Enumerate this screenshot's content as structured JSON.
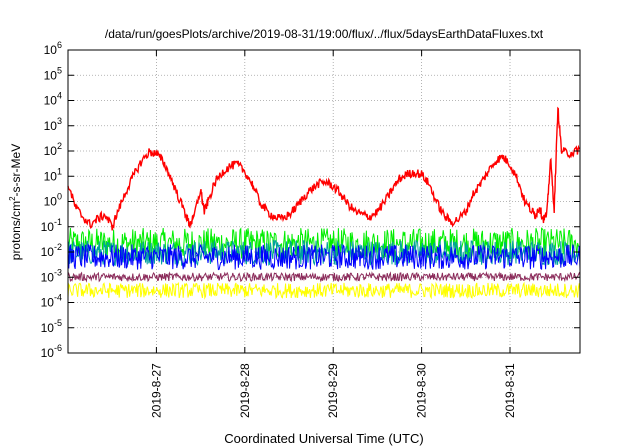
{
  "chart_data": {
    "type": "line",
    "title": "/data/run/goesPlots/archive/2019-08-31/19:00/flux/../flux/5daysEarthDataFluxes.txt",
    "xlabel": "Coordinated Universal Time (UTC)",
    "ylabel_parts": {
      "base": "protons/cm",
      "sup": "2",
      "rest": "-s-sr-MeV"
    },
    "yscale": "log",
    "ylim": [
      1e-06,
      1000000.0
    ],
    "xlim": [
      "2019-08-26",
      "2019-08-31T19:00"
    ],
    "grid": true,
    "y_ticks": [
      {
        "base": "10",
        "exp": "-6",
        "value": 1e-06
      },
      {
        "base": "10",
        "exp": "-5",
        "value": 1e-05
      },
      {
        "base": "10",
        "exp": "-4",
        "value": 0.0001
      },
      {
        "base": "10",
        "exp": "-3",
        "value": 0.001
      },
      {
        "base": "10",
        "exp": "-2",
        "value": 0.01
      },
      {
        "base": "10",
        "exp": "-1",
        "value": 0.1
      },
      {
        "base": "10",
        "exp": "0",
        "value": 1
      },
      {
        "base": "10",
        "exp": "1",
        "value": 10
      },
      {
        "base": "10",
        "exp": "2",
        "value": 100
      },
      {
        "base": "10",
        "exp": "3",
        "value": 1000
      },
      {
        "base": "10",
        "exp": "4",
        "value": 10000
      },
      {
        "base": "10",
        "exp": "5",
        "value": 100000
      },
      {
        "base": "10",
        "exp": "6",
        "value": 1000000
      }
    ],
    "x_ticks": [
      "2019-8-27",
      "2019-8-28",
      "2019-8-29",
      "2019-8-30",
      "2019-8-31"
    ],
    "series": [
      {
        "color": "#ff0000",
        "x": [
          "2019-08-26T00:00",
          "2019-08-26T02:00",
          "2019-08-26T04:00",
          "2019-08-26T06:00",
          "2019-08-26T08:00",
          "2019-08-26T10:00",
          "2019-08-26T12:00",
          "2019-08-26T14:00",
          "2019-08-26T16:00",
          "2019-08-26T18:00",
          "2019-08-26T20:00",
          "2019-08-26T22:00",
          "2019-08-27T00:00",
          "2019-08-27T02:00",
          "2019-08-27T04:00",
          "2019-08-27T06:00",
          "2019-08-27T08:00",
          "2019-08-27T09:00",
          "2019-08-27T10:00",
          "2019-08-27T12:00",
          "2019-08-27T13:00",
          "2019-08-27T14:00",
          "2019-08-27T16:00",
          "2019-08-27T18:00",
          "2019-08-27T20:00",
          "2019-08-27T22:00",
          "2019-08-28T00:00",
          "2019-08-28T02:00",
          "2019-08-28T04:00",
          "2019-08-28T06:00",
          "2019-08-28T08:00",
          "2019-08-28T10:00",
          "2019-08-28T12:00",
          "2019-08-28T14:00",
          "2019-08-28T16:00",
          "2019-08-28T18:00",
          "2019-08-28T20:00",
          "2019-08-28T22:00",
          "2019-08-29T00:00",
          "2019-08-29T02:00",
          "2019-08-29T04:00",
          "2019-08-29T06:00",
          "2019-08-29T08:00",
          "2019-08-29T10:00",
          "2019-08-29T12:00",
          "2019-08-29T14:00",
          "2019-08-29T16:00",
          "2019-08-29T18:00",
          "2019-08-29T20:00",
          "2019-08-29T22:00",
          "2019-08-30T00:00",
          "2019-08-30T02:00",
          "2019-08-30T04:00",
          "2019-08-30T06:00",
          "2019-08-30T08:00",
          "2019-08-30T10:00",
          "2019-08-30T12:00",
          "2019-08-30T14:00",
          "2019-08-30T16:00",
          "2019-08-30T18:00",
          "2019-08-30T20:00",
          "2019-08-30T22:00",
          "2019-08-31T00:00",
          "2019-08-31T02:00",
          "2019-08-31T04:00",
          "2019-08-31T06:00",
          "2019-08-31T07:00",
          "2019-08-31T08:00",
          "2019-08-31T09:00",
          "2019-08-31T10:00",
          "2019-08-31T11:00",
          "2019-08-31T12:00",
          "2019-08-31T13:00",
          "2019-08-31T14:00",
          "2019-08-31T16:00",
          "2019-08-31T18:00",
          "2019-08-31T19:00"
        ],
        "y": [
          5,
          0.6,
          0.25,
          0.12,
          0.2,
          0.3,
          0.1,
          0.6,
          3,
          12,
          40,
          90,
          80,
          35,
          8,
          1.5,
          0.3,
          0.12,
          0.2,
          3,
          0.4,
          1,
          6,
          15,
          25,
          30,
          15,
          5,
          1,
          0.4,
          0.25,
          0.2,
          0.3,
          0.6,
          1.5,
          3,
          5,
          6,
          4,
          2,
          0.8,
          0.4,
          0.3,
          0.25,
          0.4,
          1,
          3,
          8,
          12,
          14,
          12,
          5,
          1,
          0.3,
          0.15,
          0.2,
          0.4,
          2,
          5,
          15,
          40,
          60,
          30,
          8,
          1,
          0.4,
          0.3,
          0.6,
          0.2,
          0.3,
          50,
          0.5,
          5000,
          100,
          80,
          100,
          120
        ]
      },
      {
        "color": "#00ee00",
        "band": [
          0.005,
          0.09
        ]
      },
      {
        "color": "#00a0a0",
        "band": [
          0.003,
          0.03
        ]
      },
      {
        "color": "#0000ff",
        "band": [
          0.002,
          0.02
        ]
      },
      {
        "color": "#8b2a5a",
        "band": [
          0.0007,
          0.0015
        ]
      },
      {
        "color": "#ffff00",
        "band": [
          0.00015,
          0.0006
        ]
      }
    ]
  }
}
